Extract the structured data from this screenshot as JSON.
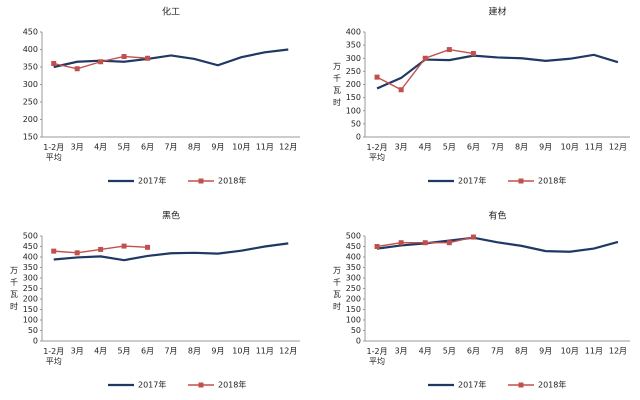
{
  "chart_data": [
    {
      "type": "line",
      "title": "化工",
      "categories": [
        "1-2月\n平均",
        "3月",
        "4月",
        "5月",
        "6月",
        "7月",
        "8月",
        "9月",
        "10月",
        "11月",
        "12月"
      ],
      "series": [
        {
          "name": "2017年",
          "color": "#1f3864",
          "values": [
            350,
            365,
            368,
            365,
            373,
            383,
            373,
            355,
            378,
            392,
            400
          ]
        },
        {
          "name": "2018年",
          "color": "#c0504d",
          "values": [
            360,
            345,
            365,
            380,
            375,
            null,
            null,
            null,
            null,
            null,
            null
          ]
        }
      ],
      "ylim": [
        150,
        450
      ],
      "yticks": [
        150,
        200,
        250,
        300,
        350,
        400,
        450
      ],
      "legend": "bottom"
    },
    {
      "type": "line",
      "title": "建材",
      "y_label": "万千瓦时",
      "categories": [
        "1-2月\n平均",
        "3月",
        "4月",
        "5月",
        "6月",
        "7月",
        "8月",
        "9月",
        "10月",
        "11月",
        "12月"
      ],
      "series": [
        {
          "name": "2017年",
          "color": "#1f3864",
          "values": [
            185,
            225,
            295,
            293,
            310,
            303,
            300,
            290,
            298,
            313,
            285
          ]
        },
        {
          "name": "2018年",
          "color": "#c0504d",
          "values": [
            228,
            180,
            300,
            333,
            318,
            null,
            null,
            null,
            null,
            null,
            null
          ]
        }
      ],
      "ylim": [
        0,
        400
      ],
      "yticks": [
        0,
        50,
        100,
        150,
        200,
        250,
        300,
        350,
        400
      ],
      "legend": "bottom"
    },
    {
      "type": "line",
      "title": "黑色",
      "y_label": "万千瓦时",
      "categories": [
        "1-2月\n平均",
        "3月",
        "4月",
        "5月",
        "6月",
        "7月",
        "8月",
        "9月",
        "10月",
        "11月",
        "12月"
      ],
      "series": [
        {
          "name": "2017年",
          "color": "#1f3864",
          "values": [
            388,
            398,
            403,
            385,
            405,
            418,
            420,
            416,
            430,
            450,
            465
          ]
        },
        {
          "name": "2018年",
          "color": "#c0504d",
          "values": [
            428,
            420,
            436,
            452,
            446,
            null,
            null,
            null,
            null,
            null,
            null
          ]
        }
      ],
      "ylim": [
        0,
        500
      ],
      "yticks": [
        0,
        50,
        100,
        150,
        200,
        250,
        300,
        350,
        400,
        450,
        500
      ],
      "legend": "bottom"
    },
    {
      "type": "line",
      "title": "有色",
      "y_label": "万千瓦时",
      "categories": [
        "1-2月\n平均",
        "3月",
        "4月",
        "5月",
        "6月",
        "7月",
        "8月",
        "9月",
        "10月",
        "11月",
        "12月"
      ],
      "series": [
        {
          "name": "2017年",
          "color": "#1f3864",
          "values": [
            440,
            455,
            465,
            478,
            492,
            470,
            453,
            428,
            425,
            440,
            472
          ]
        },
        {
          "name": "2018年",
          "color": "#c0504d",
          "values": [
            450,
            468,
            468,
            468,
            495,
            null,
            null,
            null,
            null,
            null,
            null
          ]
        }
      ],
      "ylim": [
        0,
        500
      ],
      "yticks": [
        0,
        50,
        100,
        150,
        200,
        250,
        300,
        350,
        400,
        450,
        500
      ],
      "legend": "bottom"
    }
  ]
}
